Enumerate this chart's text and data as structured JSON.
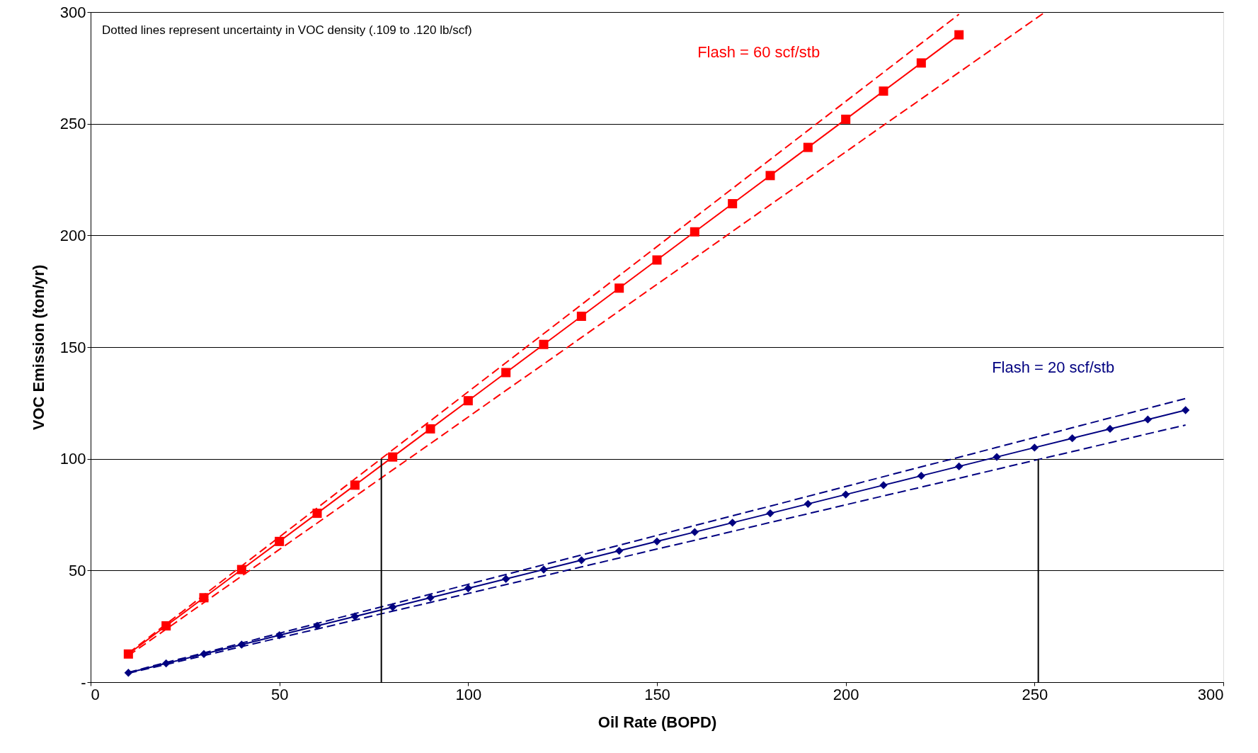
{
  "chart_data": {
    "type": "line",
    "xlabel": "Oil Rate (BOPD)",
    "ylabel": "VOC Emission (ton/yr)",
    "xlim": [
      0,
      300
    ],
    "xticks": [
      0,
      50,
      100,
      150,
      200,
      250,
      300
    ],
    "ylim": [
      0,
      300
    ],
    "yticks": [
      {
        "value": 0,
        "label": "-"
      },
      50,
      100,
      150,
      200,
      250,
      300
    ],
    "grid": "y",
    "legend": false,
    "annotations": [
      "Dotted lines represent uncertainty in VOC density (.109 to .120 lb/scf)"
    ],
    "series": [
      {
        "name": "Flash = 60 scf/stb",
        "color": "#ff0000",
        "marker": "square",
        "line_style": "solid",
        "x": [
          10,
          20,
          30,
          40,
          50,
          60,
          70,
          80,
          90,
          100,
          110,
          120,
          130,
          140,
          150,
          160,
          170,
          180,
          190,
          200,
          210,
          220,
          230
        ],
        "values": [
          12.6,
          25.2,
          37.8,
          50.4,
          63,
          75.6,
          88.2,
          100.8,
          113.4,
          126,
          138.6,
          151.2,
          163.8,
          176.4,
          189,
          201.6,
          214.2,
          226.8,
          239.4,
          252,
          264.6,
          277.2,
          289.8
        ]
      },
      {
        "type": "line",
        "color": "#ff0000",
        "marker": "none",
        "line_style": "dashed",
        "x": [
          10,
          20,
          30,
          40,
          50,
          60,
          70,
          80,
          90,
          100,
          110,
          120,
          130,
          140,
          150,
          160,
          170,
          180,
          190,
          200,
          210,
          220,
          230,
          252.8
        ],
        "values": [
          11.9,
          23.7,
          35.6,
          47.5,
          59.4,
          71.2,
          83.1,
          95,
          106.8,
          118.7,
          130.6,
          142.4,
          154.3,
          166.2,
          178.1,
          189.9,
          201.8,
          213.7,
          225.5,
          237.4,
          249.3,
          261.1,
          273,
          300
        ]
      },
      {
        "type": "line",
        "color": "#ff0000",
        "marker": "none",
        "line_style": "dashed",
        "x": [
          10,
          20,
          30,
          40,
          50,
          60,
          70,
          80,
          90,
          100,
          110,
          120,
          130,
          140,
          150,
          160,
          170,
          180,
          190,
          200,
          210,
          220,
          230
        ],
        "values": [
          13,
          26,
          39,
          52,
          65,
          78,
          91,
          104,
          117,
          130,
          143,
          156,
          169,
          182,
          195,
          208,
          221,
          234,
          247,
          260,
          273,
          286,
          299
        ]
      },
      {
        "name": "Flash = 20 scf/stb",
        "color": "#000080",
        "marker": "diamond",
        "line_style": "solid",
        "x": [
          10,
          20,
          30,
          40,
          50,
          60,
          70,
          80,
          90,
          100,
          110,
          120,
          130,
          140,
          150,
          160,
          170,
          180,
          190,
          200,
          210,
          220,
          230,
          240,
          250,
          260,
          270,
          280,
          290
        ],
        "values": [
          4.2,
          8.4,
          12.6,
          16.8,
          21,
          25.2,
          29.4,
          33.6,
          37.8,
          42,
          46.2,
          50.4,
          54.6,
          58.8,
          63,
          67.2,
          71.4,
          75.6,
          79.8,
          84,
          88.2,
          92.4,
          96.6,
          100.8,
          105,
          109.2,
          113.4,
          117.6,
          121.8
        ]
      },
      {
        "type": "line",
        "color": "#000080",
        "marker": "none",
        "line_style": "dashed",
        "x": [
          10,
          20,
          30,
          40,
          50,
          60,
          70,
          80,
          90,
          100,
          110,
          120,
          130,
          140,
          150,
          160,
          170,
          180,
          190,
          200,
          210,
          220,
          230,
          240,
          250,
          260,
          270,
          280,
          290
        ],
        "values": [
          4,
          7.9,
          11.9,
          15.9,
          19.9,
          23.8,
          27.8,
          31.8,
          35.7,
          39.7,
          43.7,
          47.6,
          51.6,
          55.6,
          59.6,
          63.5,
          67.5,
          71.5,
          75.4,
          79.4,
          83.4,
          87.3,
          91.3,
          95.3,
          99.3,
          103.2,
          107.2,
          111.2,
          115.1
        ]
      },
      {
        "type": "line",
        "color": "#000080",
        "marker": "none",
        "line_style": "dashed",
        "x": [
          10,
          20,
          30,
          40,
          50,
          60,
          70,
          80,
          90,
          100,
          110,
          120,
          130,
          140,
          150,
          160,
          170,
          180,
          190,
          200,
          210,
          220,
          230,
          240,
          250,
          260,
          270,
          280,
          290
        ],
        "values": [
          4.4,
          8.8,
          13.1,
          17.5,
          21.9,
          26.3,
          30.7,
          35,
          39.4,
          43.8,
          48.2,
          52.6,
          56.9,
          61.3,
          65.7,
          70.1,
          74.5,
          78.8,
          83.2,
          87.6,
          92,
          96.4,
          100.7,
          105.1,
          109.5,
          113.9,
          118.3,
          122.6,
          127
        ]
      },
      {
        "type": "line",
        "color": "#000000",
        "marker": "none",
        "line_style": "solid",
        "x": [
          77,
          77
        ],
        "values": [
          0,
          100
        ]
      },
      {
        "type": "line",
        "color": "#000000",
        "marker": "none",
        "line_style": "solid",
        "x": [
          251,
          251
        ],
        "values": [
          0,
          100
        ]
      }
    ]
  }
}
